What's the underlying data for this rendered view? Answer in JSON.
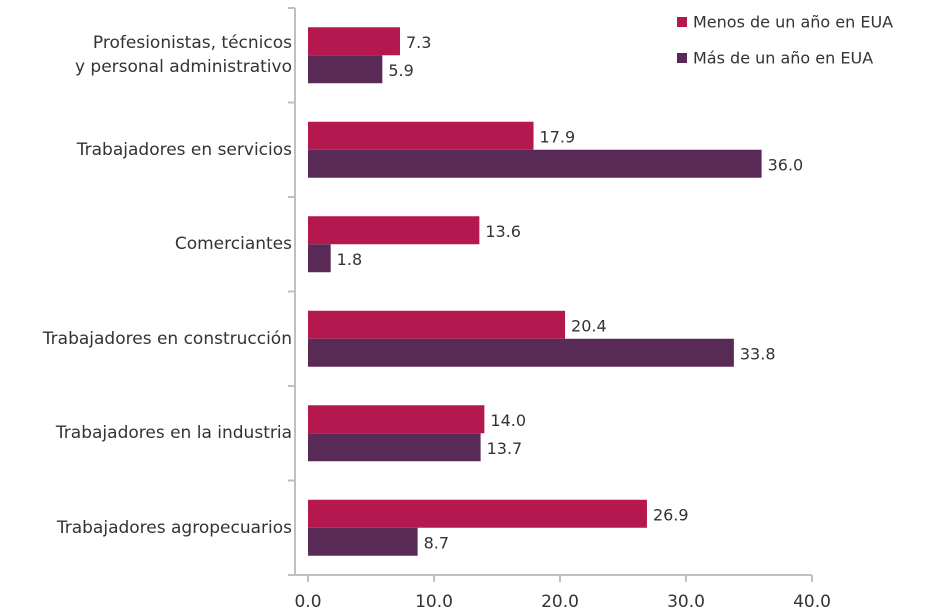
{
  "chart_data": {
    "type": "barh",
    "categories": [
      "Profesionistas, técnicos\ny personal administrativo",
      "Trabajadores en servicios",
      "Comerciantes",
      "Trabajadores en construcción",
      "Trabajadores en la industria",
      "Trabajadores agropecuarios"
    ],
    "series": [
      {
        "name": "Menos de un año en EUA",
        "color": "#b5174f",
        "values": [
          7.3,
          17.9,
          13.6,
          20.4,
          14.0,
          26.9
        ],
        "value_labels": [
          "7.3",
          "17.9",
          "13.6",
          "20.4",
          "14.0",
          "26.9"
        ]
      },
      {
        "name": "Más de un año en EUA",
        "color": "#5a2a57",
        "values": [
          5.9,
          36.0,
          1.8,
          33.8,
          13.7,
          8.7
        ],
        "value_labels": [
          "5.9",
          "36.0",
          "1.8",
          "33.8",
          "13.7",
          "8.7"
        ]
      }
    ],
    "xlim": [
      0,
      40
    ],
    "xticks": [
      {
        "value": 0,
        "label": "0.0"
      },
      {
        "value": 10,
        "label": "10.0"
      },
      {
        "value": 20,
        "label": "20.0"
      },
      {
        "value": 30,
        "label": "30.0"
      },
      {
        "value": 40,
        "label": "40.0"
      }
    ],
    "legend": "top-right"
  }
}
